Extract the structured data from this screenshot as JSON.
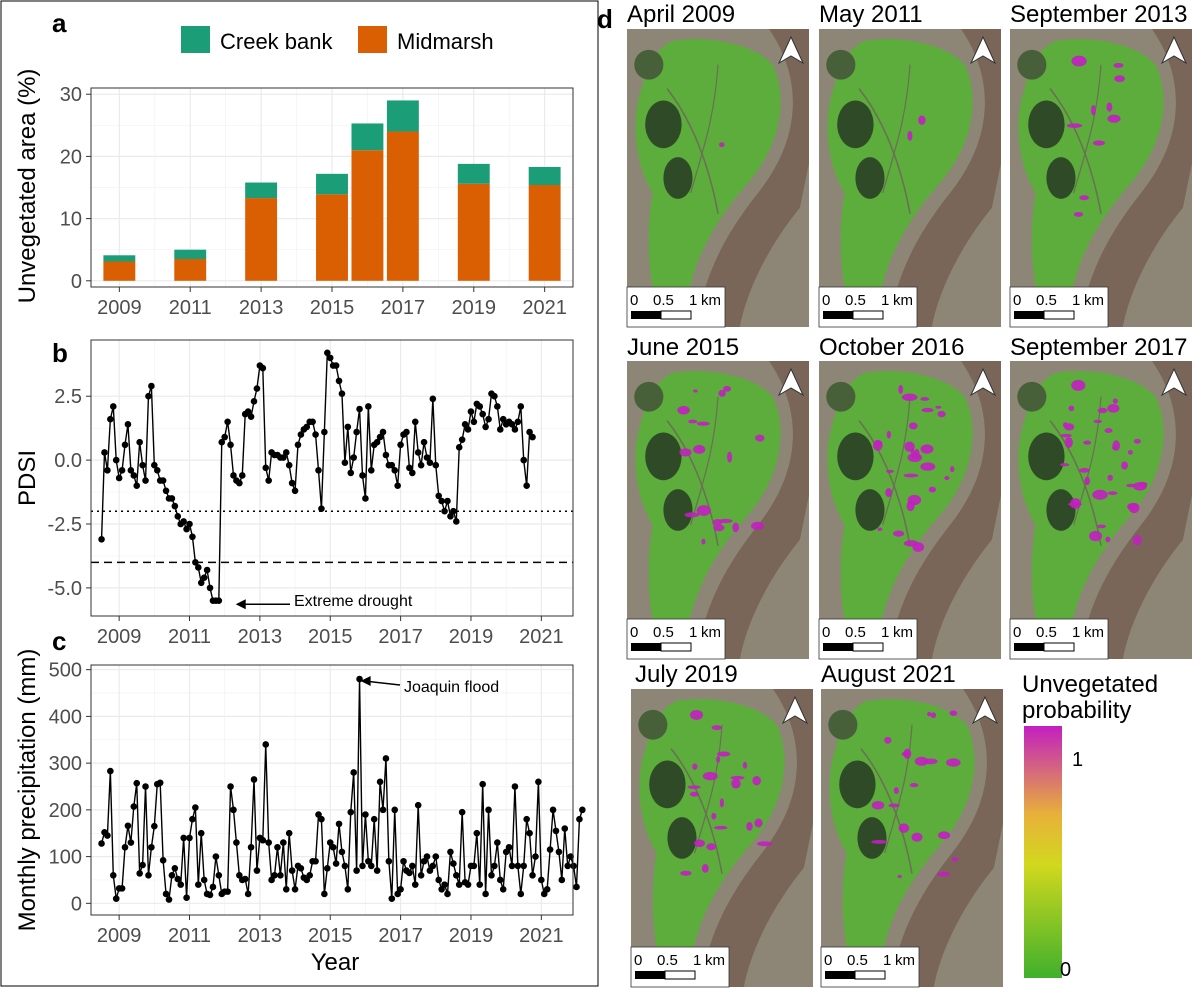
{
  "panel_letters": {
    "a": "a",
    "b": "b",
    "c": "c",
    "d": "d"
  },
  "colors": {
    "creek": "#1b9e77",
    "mid": "#d95f02",
    "grid": "#ebebeb",
    "map_green": "#5cad3c",
    "map_river": "#7a6658",
    "map_urban": "#8d8676",
    "map_forest": "#2f4a26",
    "map_magenta": "#c21fc0"
  },
  "chart_data": [
    {
      "id": "a",
      "type": "bar",
      "ylabel": "Unvegetated area (%)",
      "xlabel": "",
      "legend": [
        "Creek bank",
        "Midmarsh"
      ],
      "legend_position": "top",
      "grid": true,
      "ylim": [
        -1,
        31
      ],
      "xlim": [
        2008.2,
        2021.8
      ],
      "yticks": [
        0,
        10,
        20,
        30
      ],
      "xticks": [
        2009,
        2011,
        2013,
        2015,
        2017,
        2019,
        2021
      ],
      "x": [
        2009,
        2011,
        2013,
        2015,
        2016,
        2017,
        2019,
        2021
      ],
      "series": [
        {
          "name": "Midmarsh",
          "values": [
            3.1,
            3.5,
            13.3,
            13.9,
            21.0,
            24.0,
            15.6,
            15.4
          ]
        },
        {
          "name": "Creek bank",
          "values": [
            1.0,
            1.5,
            2.5,
            3.3,
            4.3,
            5.0,
            3.2,
            2.9
          ]
        }
      ]
    },
    {
      "id": "b",
      "type": "line",
      "ylabel": "PDSI",
      "grid": true,
      "ylim": [
        -6.1,
        4.7
      ],
      "xlim": [
        2008.2,
        2021.9
      ],
      "yticks": [
        -5.0,
        -2.5,
        0.0,
        2.5
      ],
      "ytick_labels": [
        "-5.0",
        "-2.5",
        "0.0",
        "2.5"
      ],
      "xticks": [
        2009,
        2011,
        2013,
        2015,
        2017,
        2019,
        2021
      ],
      "hlines": [
        {
          "y": -2,
          "style": "dotted"
        },
        {
          "y": -4,
          "style": "dashed"
        }
      ],
      "annotation": {
        "text": "Extreme drought",
        "x": 2012.2,
        "y": -5.6
      },
      "start": 2008.5,
      "step": 0.08333,
      "values": [
        -3.1,
        0.3,
        -0.4,
        1.6,
        2.1,
        0.0,
        -0.7,
        -0.4,
        0.6,
        1.4,
        -0.4,
        -0.6,
        -1.0,
        0.7,
        -0.2,
        -0.8,
        2.5,
        2.9,
        -0.2,
        -0.4,
        -0.8,
        -0.8,
        -1.2,
        -1.5,
        -1.5,
        -1.8,
        -2.2,
        -2.5,
        -2.4,
        -2.7,
        -2.5,
        -3.0,
        -4.0,
        -4.2,
        -4.8,
        -4.6,
        -4.3,
        -5.0,
        -5.5,
        -5.5,
        -5.5,
        0.7,
        0.9,
        1.5,
        0.6,
        -0.6,
        -0.8,
        -0.9,
        -0.6,
        1.8,
        1.9,
        1.7,
        2.3,
        2.8,
        3.7,
        3.6,
        -0.3,
        -0.8,
        0.3,
        0.2,
        0.2,
        0.1,
        0.1,
        0.3,
        -0.2,
        -0.9,
        -1.2,
        0.6,
        1.0,
        1.2,
        1.3,
        1.5,
        1.5,
        1.0,
        -0.4,
        -1.9,
        1.1,
        4.2,
        4.0,
        3.7,
        3.7,
        3.1,
        2.6,
        -0.1,
        1.3,
        -0.5,
        0.1,
        1.1,
        2.0,
        -0.6,
        -1.5,
        2.1,
        -0.4,
        0.6,
        0.7,
        0.9,
        1.1,
        0.2,
        -0.2,
        -0.2,
        -0.4,
        -1.0,
        0.6,
        1.0,
        1.1,
        -0.3,
        -0.5,
        1.5,
        0.3,
        -0.2,
        0.7,
        0.1,
        -0.1,
        2.4,
        -0.2,
        -1.4,
        -1.6,
        -2.0,
        -1.6,
        -2.2,
        -2.0,
        -2.4,
        0.5,
        0.8,
        1.4,
        1.2,
        1.9,
        1.5,
        2.2,
        2.1,
        1.8,
        1.3,
        1.6,
        2.6,
        2.5,
        2.1,
        1.2,
        1.6,
        1.4,
        1.5,
        1.4,
        1.2,
        1.5,
        2.1,
        0.0,
        -1.0,
        1.1,
        0.9
      ]
    },
    {
      "id": "c",
      "type": "line",
      "ylabel": "Monthly precipitation (mm)",
      "xlabel": "Year",
      "grid": true,
      "ylim": [
        -25,
        510
      ],
      "xlim": [
        2008.2,
        2021.9
      ],
      "yticks": [
        0,
        100,
        200,
        300,
        400,
        500
      ],
      "xticks": [
        2009,
        2011,
        2013,
        2015,
        2017,
        2019,
        2021
      ],
      "annotation": {
        "text": "Joaquin flood",
        "x": 2015.75,
        "y": 480
      },
      "start": 2008.5,
      "step": 0.08333,
      "values": [
        128,
        152,
        145,
        283,
        60,
        10,
        32,
        32,
        120,
        166,
        130,
        207,
        257,
        64,
        82,
        250,
        60,
        120,
        165,
        255,
        258,
        92,
        20,
        8,
        60,
        75,
        52,
        40,
        140,
        12,
        140,
        180,
        205,
        40,
        150,
        50,
        20,
        18,
        35,
        100,
        60,
        20,
        25,
        25,
        250,
        200,
        130,
        60,
        50,
        52,
        20,
        120,
        265,
        70,
        140,
        135,
        340,
        130,
        50,
        60,
        120,
        60,
        130,
        30,
        150,
        70,
        30,
        80,
        75,
        55,
        50,
        60,
        90,
        90,
        190,
        180,
        20,
        75,
        130,
        120,
        85,
        170,
        110,
        80,
        30,
        195,
        280,
        70,
        480,
        80,
        190,
        90,
        80,
        180,
        70,
        260,
        200,
        310,
        90,
        10,
        200,
        20,
        30,
        90,
        70,
        65,
        80,
        40,
        210,
        60,
        90,
        100,
        70,
        80,
        100,
        50,
        30,
        40,
        20,
        110,
        85,
        60,
        40,
        195,
        45,
        40,
        80,
        80,
        150,
        40,
        255,
        20,
        200,
        60,
        80,
        130,
        50,
        30,
        110,
        120,
        80,
        250,
        80,
        20,
        80,
        180,
        150,
        60,
        100,
        260,
        50,
        20,
        30,
        115,
        200,
        155,
        110,
        50,
        160,
        80,
        100,
        80,
        35,
        180,
        200
      ]
    }
  ],
  "maps": [
    {
      "title": "April 2009",
      "level": 0.02
    },
    {
      "title": "May 2011",
      "level": 0.05
    },
    {
      "title": "September 2013",
      "level": 0.25
    },
    {
      "title": "June 2015",
      "level": 0.45
    },
    {
      "title": "October 2016",
      "level": 0.7
    },
    {
      "title": "September 2017",
      "level": 0.85
    },
    {
      "title": "July 2019",
      "level": 0.55
    },
    {
      "title": "August 2021",
      "level": 0.5
    }
  ],
  "scalebar": {
    "t0": "0",
    "t1": "0.5",
    "t2": "1",
    "unit": "km"
  },
  "colorbar": {
    "title_line1": "Unvegetated",
    "title_line2": "probability",
    "max_label": "1",
    "min_label": "0"
  }
}
